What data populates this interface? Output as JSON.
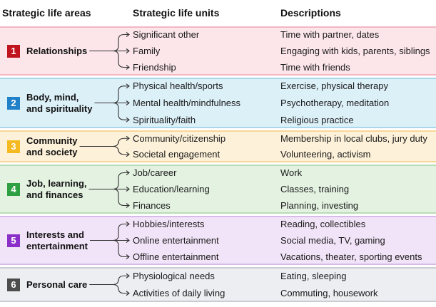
{
  "headers": {
    "areas": "Strategic life areas",
    "units": "Strategic life units",
    "descriptions": "Descriptions"
  },
  "groups": [
    {
      "number": "1",
      "label": "Relationships",
      "color": "#c0141f",
      "band": "#fce6ea",
      "border": "#f2b6c3",
      "rows": [
        {
          "unit": "Significant other",
          "desc": "Time with partner, dates"
        },
        {
          "unit": "Family",
          "desc": "Engaging with kids, parents, siblings"
        },
        {
          "unit": "Friendship",
          "desc": "Time with friends"
        }
      ]
    },
    {
      "number": "2",
      "label": "Body, mind,\nand spirituality",
      "color": "#2080c8",
      "band": "#dcf0f8",
      "border": "#a9d8ec",
      "rows": [
        {
          "unit": "Physical health/sports",
          "desc": "Exercise, physical therapy"
        },
        {
          "unit": "Mental health/mindfulness",
          "desc": "Psychotherapy, meditation"
        },
        {
          "unit": "Spirituality/faith",
          "desc": "Religious practice"
        }
      ]
    },
    {
      "number": "3",
      "label": "Community\nand society",
      "color": "#f5b921",
      "band": "#fdf1d9",
      "border": "#f6d796",
      "rows": [
        {
          "unit": "Community/citizenship",
          "desc": "Membership in local clubs, jury duty"
        },
        {
          "unit": "Societal engagement",
          "desc": "Volunteering, activism"
        }
      ]
    },
    {
      "number": "4",
      "label": "Job, learning,\nand finances",
      "color": "#2ea043",
      "band": "#e3f2e1",
      "border": "#b9dcb5",
      "rows": [
        {
          "unit": "Job/career",
          "desc": "Work"
        },
        {
          "unit": "Education/learning",
          "desc": "Classes, training"
        },
        {
          "unit": "Finances",
          "desc": "Planning, investing"
        }
      ]
    },
    {
      "number": "5",
      "label": "Interests and\nentertainment",
      "color": "#8b2fc9",
      "band": "#f2e4f8",
      "border": "#d7b9ea",
      "rows": [
        {
          "unit": "Hobbies/interests",
          "desc": "Reading, collectibles"
        },
        {
          "unit": "Online entertainment",
          "desc": "Social media, TV, gaming"
        },
        {
          "unit": "Offline entertainment",
          "desc": "Vacations, theater, sporting events"
        }
      ]
    },
    {
      "number": "6",
      "label": "Personal care",
      "color": "#4d4d4d",
      "band": "#eceef1",
      "border": "#c9cdd3",
      "rows": [
        {
          "unit": "Physiological needs",
          "desc": "Eating, sleeping"
        },
        {
          "unit": "Activities of daily living",
          "desc": "Commuting, housework"
        }
      ]
    }
  ]
}
